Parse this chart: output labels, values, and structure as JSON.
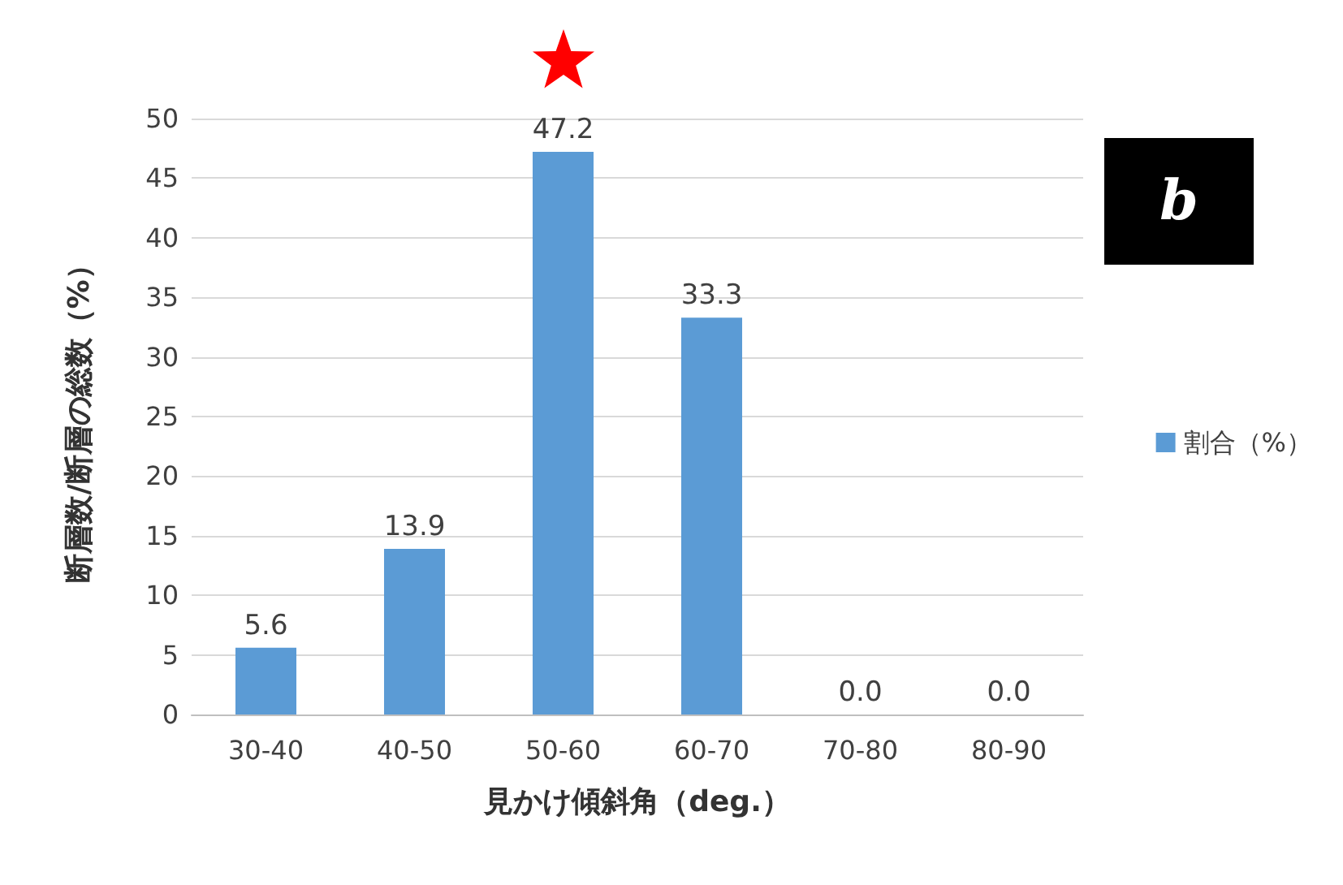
{
  "chart_data": {
    "type": "bar",
    "xlabel": "見かけ傾斜角（deg.）",
    "ylabel": "断層数/断層の総数（%）",
    "categories": [
      "30-40",
      "40-50",
      "50-60",
      "60-70",
      "70-80",
      "80-90"
    ],
    "series": [
      {
        "name": "割合（%）",
        "color": "#5b9bd5",
        "values": [
          5.6,
          13.9,
          47.2,
          33.3,
          0.0,
          0.0
        ],
        "value_labels": [
          "5.6",
          "13.9",
          "47.2",
          "33.3",
          "0.0",
          "0.0"
        ]
      }
    ],
    "ylim": [
      0,
      50
    ],
    "yticks": [
      0,
      5,
      10,
      15,
      20,
      25,
      30,
      35,
      40,
      45,
      50
    ],
    "grid": "y",
    "legend": "right",
    "annotations": [
      "b"
    ]
  }
}
